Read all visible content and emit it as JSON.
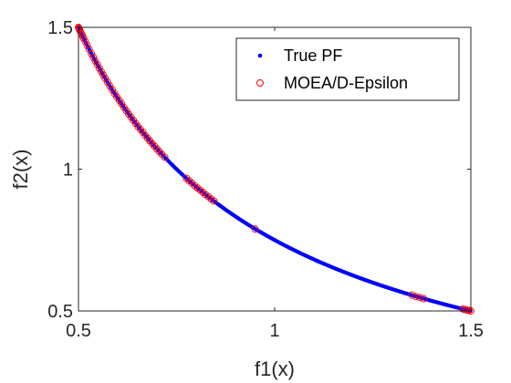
{
  "chart_data": {
    "type": "scatter",
    "title": "",
    "xlabel": "f1(x)",
    "ylabel": "f2(x)",
    "xlim": [
      0.5,
      1.5
    ],
    "ylim": [
      0.5,
      1.5
    ],
    "xticks": [
      "0.5",
      "1",
      "1.5"
    ],
    "yticks": [
      "0.5",
      "1",
      "1.5"
    ],
    "grid": false,
    "legend_position": "top-right",
    "series": [
      {
        "name": "True PF",
        "marker": "dot",
        "color": "#0000ff",
        "curve": "f2 = 0.75 / f1",
        "x_range": [
          0.5,
          1.5
        ]
      },
      {
        "name": "MOEA/D-Epsilon",
        "marker": "circle",
        "color": "#ff0000",
        "x": [
          0.5,
          0.501,
          0.502,
          0.504,
          0.507,
          0.51,
          0.513,
          0.517,
          0.522,
          0.527,
          0.533,
          0.538,
          0.543,
          0.548,
          0.553,
          0.558,
          0.563,
          0.568,
          0.574,
          0.58,
          0.586,
          0.592,
          0.598,
          0.604,
          0.61,
          0.616,
          0.622,
          0.628,
          0.634,
          0.64,
          0.646,
          0.652,
          0.658,
          0.664,
          0.67,
          0.676,
          0.682,
          0.688,
          0.694,
          0.7,
          0.706,
          0.712,
          0.72,
          0.775,
          0.782,
          0.789,
          0.796,
          0.803,
          0.81,
          0.817,
          0.824,
          0.831,
          0.838,
          0.845,
          0.95,
          1.35,
          1.36,
          1.37,
          1.38,
          1.48,
          1.485,
          1.49,
          1.495,
          1.5
        ],
        "y": [
          1.5,
          1.497,
          1.494,
          1.488,
          1.479,
          1.471,
          1.462,
          1.451,
          1.437,
          1.423,
          1.407,
          1.394,
          1.381,
          1.369,
          1.356,
          1.344,
          1.332,
          1.32,
          1.307,
          1.293,
          1.28,
          1.267,
          1.254,
          1.242,
          1.23,
          1.218,
          1.206,
          1.194,
          1.183,
          1.172,
          1.161,
          1.15,
          1.14,
          1.13,
          1.119,
          1.109,
          1.1,
          1.09,
          1.081,
          1.071,
          1.062,
          1.053,
          1.042,
          0.968,
          0.959,
          0.951,
          0.942,
          0.934,
          0.926,
          0.918,
          0.91,
          0.903,
          0.895,
          0.888,
          0.789,
          0.556,
          0.551,
          0.547,
          0.543,
          0.507,
          0.505,
          0.503,
          0.502,
          0.5
        ]
      }
    ]
  }
}
